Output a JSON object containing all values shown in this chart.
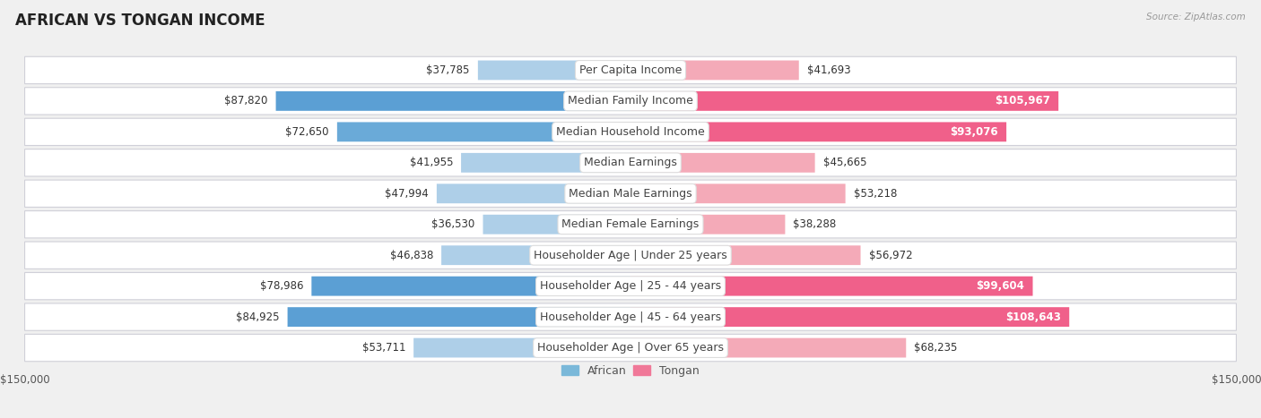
{
  "title": "AFRICAN VS TONGAN INCOME",
  "source": "Source: ZipAtlas.com",
  "categories": [
    "Per Capita Income",
    "Median Family Income",
    "Median Household Income",
    "Median Earnings",
    "Median Male Earnings",
    "Median Female Earnings",
    "Householder Age | Under 25 years",
    "Householder Age | 25 - 44 years",
    "Householder Age | 45 - 64 years",
    "Householder Age | Over 65 years"
  ],
  "african_values": [
    37785,
    87820,
    72650,
    41955,
    47994,
    36530,
    46838,
    78986,
    84925,
    53711
  ],
  "tongan_values": [
    41693,
    105967,
    93076,
    45665,
    53218,
    38288,
    56972,
    99604,
    108643,
    68235
  ],
  "african_labels": [
    "$37,785",
    "$87,820",
    "$72,650",
    "$41,955",
    "$47,994",
    "$36,530",
    "$46,838",
    "$78,986",
    "$84,925",
    "$53,711"
  ],
  "tongan_labels": [
    "$41,693",
    "$105,967",
    "$93,076",
    "$45,665",
    "$53,218",
    "$38,288",
    "$56,972",
    "$99,604",
    "$108,643",
    "$68,235"
  ],
  "african_colors": [
    "#aecfe8",
    "#5b9fd4",
    "#6aaad8",
    "#aecfe8",
    "#aecfe8",
    "#aecfe8",
    "#aecfe8",
    "#5b9fd4",
    "#5b9fd4",
    "#aecfe8"
  ],
  "tongan_colors": [
    "#f4aab8",
    "#f0608a",
    "#f0608a",
    "#f4aab8",
    "#f4aab8",
    "#f4aab8",
    "#f4aab8",
    "#f0608a",
    "#f0608a",
    "#f4aab8"
  ],
  "axis_limit": 150000,
  "axis_label_left": "$150,000",
  "axis_label_right": "$150,000",
  "legend_african": "African",
  "legend_tongan": "Tongan",
  "legend_african_color": "#7ab8d9",
  "legend_tongan_color": "#f07898",
  "bg_color": "#f0f0f0",
  "row_bg": "#ffffff",
  "row_border": "#d0d0d8",
  "label_fontsize": 9.0,
  "title_fontsize": 12,
  "value_fontsize": 8.5,
  "tongan_inside_threshold": 85000,
  "african_inside_threshold": 75000
}
